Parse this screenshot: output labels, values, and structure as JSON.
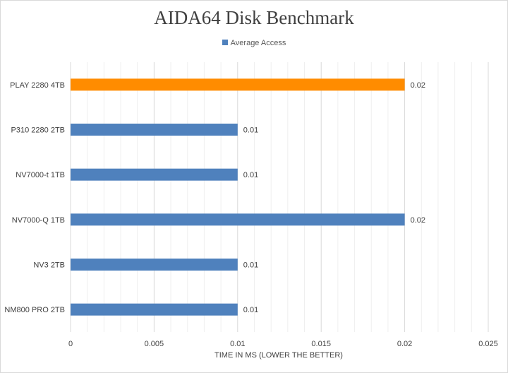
{
  "chart_data": {
    "type": "bar",
    "orientation": "horizontal",
    "title": "AIDA64 Disk Benchmark",
    "xlabel": "TIME IN MS (LOWER THE BETTER)",
    "ylabel": "",
    "xlim": [
      0,
      0.025
    ],
    "x_ticks": [
      0,
      0.005,
      0.01,
      0.015,
      0.02,
      0.025
    ],
    "x_tick_labels": [
      "0",
      "0.005",
      "0.01",
      "0.015",
      "0.02",
      "0.025"
    ],
    "grid": true,
    "legend_position": "top",
    "categories": [
      "PLAY 2280 4TB",
      "P310 2280 2TB",
      "NV7000-t 1TB",
      "NV7000-Q 1TB",
      "NV3 2TB",
      "NM800 PRO 2TB"
    ],
    "series": [
      {
        "name": "Average Access",
        "values": [
          0.02,
          0.01,
          0.01,
          0.02,
          0.01,
          0.01
        ],
        "data_labels": [
          "0.02",
          "0.01",
          "0.01",
          "0.02",
          "0.01",
          "0.01"
        ],
        "color": "#4f81bd",
        "highlight_color": "#ff8c00",
        "highlight_index": 0
      }
    ]
  }
}
